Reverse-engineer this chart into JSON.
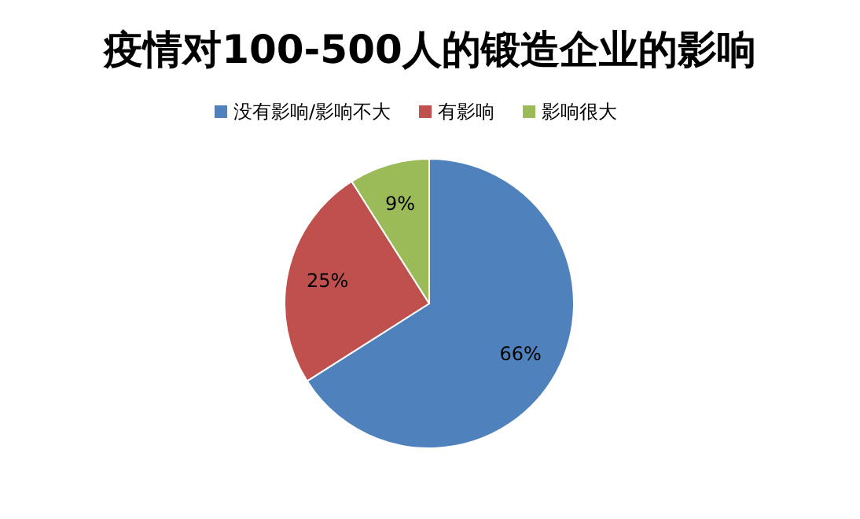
{
  "chart_data": {
    "type": "pie",
    "title": "疫情对100-500人的锻造企业的影响",
    "categories": [
      "没有影响/影响不大",
      "有影响",
      "影响很大"
    ],
    "values": [
      66,
      25,
      9
    ],
    "colors": [
      "#4f81bd",
      "#c0504d",
      "#9bbb59"
    ],
    "value_labels": [
      "66%",
      "25%",
      "9%"
    ],
    "legend": "top"
  }
}
